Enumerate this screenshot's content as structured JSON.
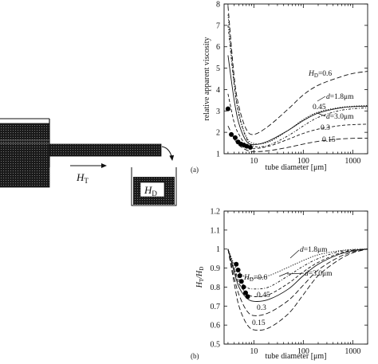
{
  "schematic": {
    "ht_label": "H",
    "ht_sub": "T",
    "hd_label": "H",
    "hd_sub": "D"
  },
  "chart_data": [
    {
      "panel": "(a)",
      "type": "line",
      "xlabel": "tube diameter [μm]",
      "ylabel": "relative apparent viscosity",
      "xscale": "log",
      "xlim": [
        2.5,
        2000
      ],
      "ylim": [
        1,
        8
      ],
      "xticks": [
        "10",
        "100",
        "1000"
      ],
      "yticks": [
        "1",
        "2",
        "3",
        "4",
        "5",
        "6",
        "7",
        "8"
      ],
      "series": [
        {
          "name": "0.6",
          "style": "dash-d",
          "x": [
            3,
            4,
            5,
            7,
            10,
            20,
            50,
            100,
            200,
            500,
            1000,
            2000
          ],
          "y": [
            7.9,
            4.6,
            3.2,
            2.15,
            1.9,
            2.3,
            3.1,
            3.75,
            4.2,
            4.55,
            4.75,
            4.85
          ]
        },
        {
          "name": "0.45",
          "style": "solid",
          "x": [
            3,
            4,
            5,
            7,
            10,
            20,
            50,
            100,
            200,
            500,
            1000,
            2000
          ],
          "y": [
            5.6,
            3.5,
            2.4,
            1.6,
            1.42,
            1.6,
            2.1,
            2.55,
            2.9,
            3.12,
            3.2,
            3.22
          ]
        },
        {
          "name": "1.8μm",
          "style": "dash-c",
          "x": [
            3,
            4,
            5,
            7,
            10,
            20,
            50,
            100,
            200,
            500,
            1000,
            2000
          ],
          "y": [
            7.5,
            4.3,
            2.9,
            1.8,
            1.48,
            1.55,
            2.1,
            2.6,
            2.95,
            3.15,
            3.22,
            3.25
          ]
        },
        {
          "name": "3.0μm",
          "style": "dash-b",
          "x": [
            3,
            4,
            5,
            7,
            10,
            20,
            50,
            100,
            200,
            500,
            1000,
            2000
          ],
          "y": [
            7.0,
            4.2,
            2.8,
            1.75,
            1.35,
            1.4,
            1.85,
            2.3,
            2.7,
            3.0,
            3.1,
            3.15
          ]
        },
        {
          "name": "0.3",
          "style": "dash-a",
          "x": [
            3,
            4,
            5,
            7,
            10,
            20,
            50,
            100,
            200,
            500,
            1000,
            2000
          ],
          "y": [
            3.8,
            2.45,
            1.9,
            1.4,
            1.25,
            1.35,
            1.68,
            1.95,
            2.15,
            2.3,
            2.36,
            2.38
          ]
        },
        {
          "name": "0.15",
          "style": "dash-d",
          "x": [
            3,
            4,
            5,
            7,
            10,
            20,
            50,
            100,
            200,
            500,
            1000,
            2000
          ],
          "y": [
            2.3,
            1.7,
            1.4,
            1.18,
            1.1,
            1.14,
            1.3,
            1.45,
            1.58,
            1.68,
            1.72,
            1.73
          ]
        }
      ],
      "points": {
        "x": [
          3,
          3.5,
          4.2,
          4.8,
          5.5,
          6.3,
          7.2,
          8.5
        ],
        "y": [
          3.1,
          1.9,
          1.75,
          1.55,
          1.45,
          1.4,
          1.35,
          1.3
        ]
      },
      "annotations": {
        "hd_prefix": "H",
        "hd_sub": "D",
        "hd_value": "=0.6",
        "d1_prefix": "d",
        "d1_value": "=1.8μm",
        "d2_prefix": "d",
        "d2_value": "=3.0μm",
        "v045": "0.45",
        "v03": "0.3",
        "v015": "0.15"
      }
    },
    {
      "panel": "(b)",
      "type": "line",
      "xlabel": "tube diameter [μm]",
      "ylabel": "HT/HD",
      "xscale": "log",
      "xlim": [
        2.5,
        2000
      ],
      "ylim": [
        0.5,
        1.2
      ],
      "xticks": [
        "10",
        "100",
        "1000"
      ],
      "yticks": [
        "0.5",
        "0.6",
        "0.7",
        "0.8",
        "0.9",
        "1",
        "1.1",
        "1.2"
      ],
      "series": [
        {
          "name": "1.8μm",
          "style": "dash-c",
          "x": [
            3,
            4,
            5,
            7,
            10,
            20,
            50,
            100,
            200,
            500,
            1000,
            2000
          ],
          "y": [
            1.0,
            0.92,
            0.88,
            0.85,
            0.845,
            0.86,
            0.905,
            0.94,
            0.97,
            0.99,
            0.998,
            1.0
          ]
        },
        {
          "name": "0.6",
          "style": "dash-b",
          "x": [
            3,
            4,
            5,
            7,
            10,
            20,
            50,
            100,
            200,
            500,
            1000,
            2000
          ],
          "y": [
            1.0,
            0.9,
            0.84,
            0.8,
            0.79,
            0.8,
            0.86,
            0.91,
            0.95,
            0.985,
            0.996,
            1.0
          ]
        },
        {
          "name": "3.0μm",
          "style": "dash-a",
          "x": [
            3,
            4,
            5,
            7,
            10,
            20,
            50,
            100,
            200,
            500,
            1000,
            2000
          ],
          "y": [
            1.0,
            0.89,
            0.82,
            0.77,
            0.75,
            0.76,
            0.82,
            0.88,
            0.93,
            0.975,
            0.993,
            1.0
          ]
        },
        {
          "name": "0.45",
          "style": "solid",
          "x": [
            3,
            4,
            5,
            7,
            10,
            20,
            50,
            100,
            200,
            500,
            1000,
            2000
          ],
          "y": [
            1.0,
            0.88,
            0.8,
            0.745,
            0.725,
            0.735,
            0.79,
            0.86,
            0.92,
            0.97,
            0.99,
            1.0
          ]
        },
        {
          "name": "0.3",
          "style": "dash-d",
          "x": [
            3,
            4,
            5,
            7,
            10,
            20,
            50,
            100,
            200,
            500,
            1000,
            2000
          ],
          "y": [
            1.0,
            0.85,
            0.76,
            0.68,
            0.65,
            0.665,
            0.73,
            0.81,
            0.89,
            0.955,
            0.985,
            1.0
          ]
        },
        {
          "name": "0.15",
          "style": "dash-d",
          "x": [
            3,
            4,
            5,
            7,
            10,
            20,
            50,
            100,
            200,
            500,
            1000,
            2000
          ],
          "y": [
            1.0,
            0.82,
            0.7,
            0.61,
            0.575,
            0.585,
            0.66,
            0.76,
            0.86,
            0.94,
            0.98,
            1.0
          ]
        }
      ],
      "points": {
        "x": [
          4.4,
          4.8,
          5.2,
          5.6,
          6.2,
          6.8,
          7.5
        ],
        "y": [
          0.92,
          0.89,
          0.86,
          0.83,
          0.8,
          0.77,
          0.75
        ]
      },
      "annotations": {
        "ylabel_h1": "H",
        "ylabel_s1": "T",
        "ylabel_mid": "/H",
        "ylabel_s2": "D",
        "hd_prefix": "H",
        "hd_sub": "D",
        "hd_value": "=0.6",
        "d1_prefix": "d",
        "d1_value": "=1.8μm",
        "d2_prefix": "d",
        "d2_value": "=3.0μm",
        "v045": "0.45",
        "v03": "0.3",
        "v015": "0.15"
      }
    }
  ]
}
